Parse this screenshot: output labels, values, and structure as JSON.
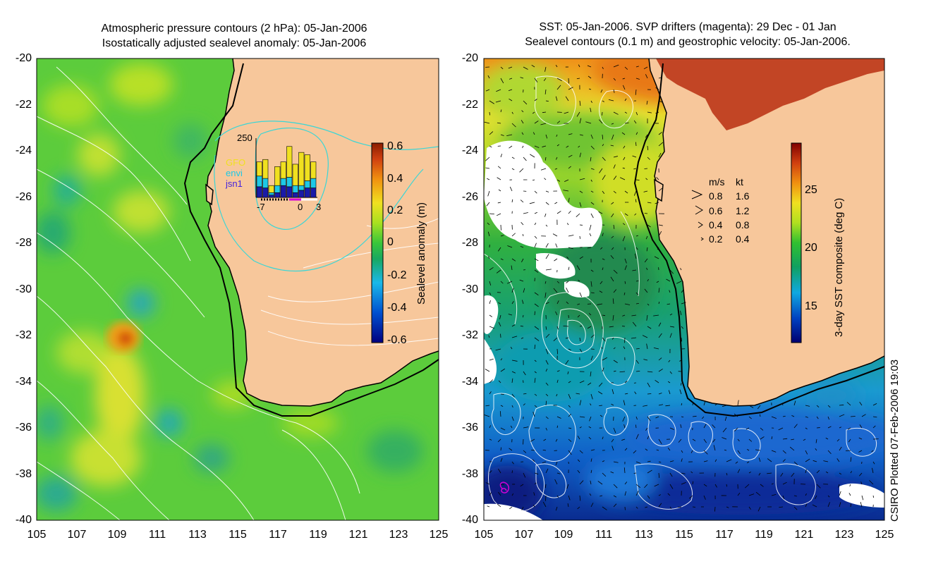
{
  "colors": {
    "land": "#f7c79b",
    "coast": "#000000",
    "contour": "#ffffff",
    "isobar_cyan": "#3ad6d6",
    "drifter_magenta": "#d400d4"
  },
  "chart_data": [
    {
      "type": "heatmap",
      "title": "Atmospheric pressure contours (2 hPa): 05-Jan-2006",
      "subtitle": "Isostatically adjusted sealevel anomaly: 05-Jan-2006",
      "xlabel": "",
      "ylabel": "",
      "xlim": [
        105,
        125
      ],
      "ylim": [
        -40,
        -20
      ],
      "xticks": [
        "105",
        "107",
        "109",
        "111",
        "113",
        "115",
        "117",
        "119",
        "121",
        "123",
        "125"
      ],
      "yticks": [
        "-20",
        "-22",
        "-24",
        "-26",
        "-28",
        "-30",
        "-32",
        "-34",
        "-36",
        "-38",
        "-40"
      ],
      "colorbar": {
        "label": "Sealevel anomaly (m)",
        "range": [
          -0.6,
          0.6
        ],
        "ticks": [
          "0.6",
          "0.4",
          "0.2",
          "0",
          "-0.2",
          "-0.4",
          "-0.6"
        ]
      },
      "inset": {
        "ymax_label": "250",
        "xtick_labels": [
          "-7",
          "0",
          "3"
        ],
        "series": [
          "GFO",
          "envi",
          "jsn1"
        ],
        "bars": {
          "days": [
            -7,
            -6,
            -5,
            -4,
            -3,
            -2,
            -1,
            0,
            1,
            2
          ],
          "jsn1": [
            45,
            40,
            10,
            20,
            50,
            45,
            20,
            30,
            40,
            40
          ],
          "envi": [
            45,
            40,
            10,
            30,
            30,
            40,
            30,
            20,
            30,
            40
          ],
          "GFO": [
            60,
            80,
            30,
            80,
            70,
            130,
            90,
            140,
            110,
            70
          ]
        }
      },
      "features": {
        "max_anomaly_location": [
          109.3,
          -32.3
        ],
        "max_anomaly_value": 0.45
      }
    },
    {
      "type": "heatmap",
      "title": "SST: 05-Jan-2006. SVP drifters (magenta): 29 Dec - 01 Jan",
      "subtitle": "Sealevel contours (0.1 m) and geostrophic velocity: 05-Jan-2006.",
      "xlabel": "",
      "ylabel": "",
      "xlim": [
        105,
        125
      ],
      "ylim": [
        -40,
        -20
      ],
      "xticks": [
        "105",
        "107",
        "109",
        "111",
        "113",
        "115",
        "117",
        "119",
        "121",
        "123",
        "125"
      ],
      "yticks": [
        "-20",
        "-22",
        "-24",
        "-26",
        "-28",
        "-30",
        "-32",
        "-34",
        "-36",
        "-38",
        "-40"
      ],
      "colorbar": {
        "label": "3-day SST composite (deg C)",
        "range": [
          11,
          29
        ],
        "ticks": [
          "25",
          "20",
          "15"
        ]
      },
      "velocity_legend": {
        "header_ms": "m/s",
        "header_kt": "kt",
        "rows": [
          {
            "ms": "0.8",
            "kt": "1.6"
          },
          {
            "ms": "0.6",
            "kt": "1.2"
          },
          {
            "ms": "0.4",
            "kt": "0.8"
          },
          {
            "ms": "0.2",
            "kt": "0.4"
          }
        ]
      },
      "drifter": {
        "location": [
          106.1,
          -38.9
        ]
      }
    }
  ],
  "stamp": "CSIRO Plotted 07-Feb-2006 19:03"
}
